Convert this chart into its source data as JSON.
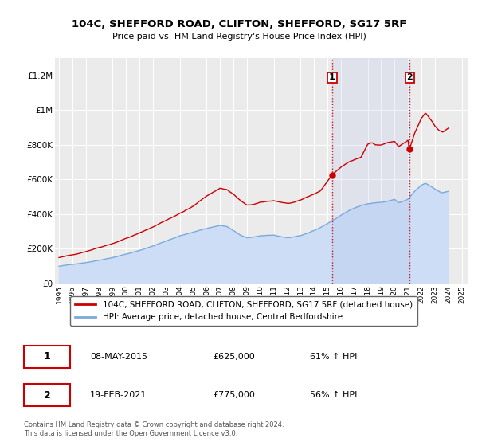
{
  "title": "104C, SHEFFORD ROAD, CLIFTON, SHEFFORD, SG17 5RF",
  "subtitle": "Price paid vs. HM Land Registry's House Price Index (HPI)",
  "ylim": [
    0,
    1300000
  ],
  "yticks": [
    0,
    200000,
    400000,
    600000,
    800000,
    1000000,
    1200000
  ],
  "ytick_labels": [
    "£0",
    "£200K",
    "£400K",
    "£600K",
    "£800K",
    "£1M",
    "£1.2M"
  ],
  "bg_color": "#ffffff",
  "plot_bg_color": "#ebebeb",
  "hpi_fill_color": "#ccddf5",
  "red_line_color": "#cc0000",
  "blue_line_color": "#7aaadd",
  "vline_color": "#cc0000",
  "marker1_date": 2015.35,
  "marker1_price": 625000,
  "marker1_label": "1",
  "marker2_date": 2021.12,
  "marker2_price": 775000,
  "marker2_label": "2",
  "legend_red_label": "104C, SHEFFORD ROAD, CLIFTON, SHEFFORD, SG17 5RF (detached house)",
  "legend_blue_label": "HPI: Average price, detached house, Central Bedfordshire",
  "table_row1": [
    "1",
    "08-MAY-2015",
    "£625,000",
    "61% ↑ HPI"
  ],
  "table_row2": [
    "2",
    "19-FEB-2021",
    "£775,000",
    "56% ↑ HPI"
  ],
  "footnote": "Contains HM Land Registry data © Crown copyright and database right 2024.\nThis data is licensed under the Open Government Licence v3.0.",
  "xtick_years": [
    1995,
    1996,
    1997,
    1998,
    1999,
    2000,
    2001,
    2002,
    2003,
    2004,
    2005,
    2006,
    2007,
    2008,
    2009,
    2010,
    2011,
    2012,
    2013,
    2014,
    2015,
    2016,
    2017,
    2018,
    2019,
    2020,
    2021,
    2022,
    2023,
    2024,
    2025
  ],
  "xlim": [
    1994.7,
    2025.5
  ]
}
